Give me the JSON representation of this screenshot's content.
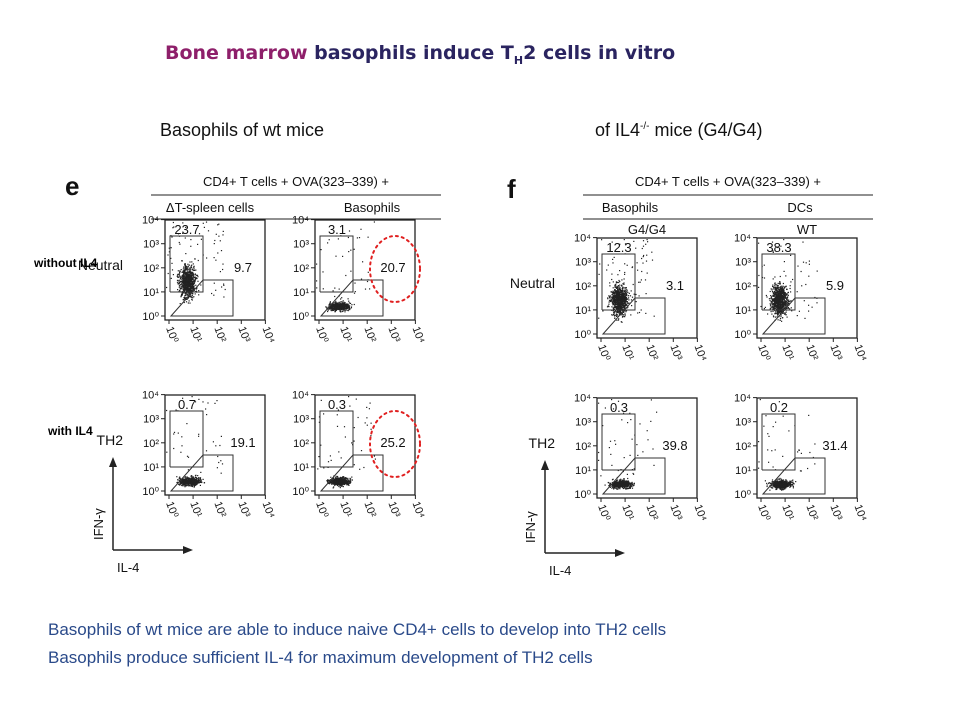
{
  "slide": {
    "title_highlight": "Bone marrow",
    "title_rest": " basophils induce T",
    "title_sub": "H",
    "title_end": "2 cells in vitro",
    "left_heading": "Basophils of wt mice",
    "right_heading_a": "of IL4",
    "right_heading_sup": "-/-",
    "right_heading_b": " mice (G4/G4)",
    "row_label_top": "without IL4",
    "row_label_bottom": "with IL4",
    "conclusion_1": "Basophils of wt mice are able to induce naive CD4+ cells to develop into TH2 cells",
    "conclusion_2": "Basophils produce sufficient IL-4 for maximum development of TH2 cells"
  },
  "panel_e": {
    "letter": "e",
    "header_main": "CD4+ T cells + OVA(323–339) +",
    "col_labels": [
      "ΔT-spleen cells",
      "Basophils"
    ],
    "row_labels": [
      "Neutral",
      "TH2"
    ],
    "plots": [
      {
        "upper": "23.7",
        "lower": "9.7"
      },
      {
        "upper": "3.1",
        "lower": "20.7"
      },
      {
        "upper": "0.7",
        "lower": "19.1"
      },
      {
        "upper": "0.3",
        "lower": "25.2"
      }
    ],
    "y_axis": "IFN-γ",
    "x_axis": "IL-4"
  },
  "panel_f": {
    "letter": "f",
    "header_main": "CD4+ T cells + OVA(323–339) +",
    "col_labels": [
      "Basophils",
      "DCs"
    ],
    "col_sublabels": [
      "G4/G4",
      "WT"
    ],
    "row_labels": [
      "Neutral",
      "TH2"
    ],
    "plots": [
      {
        "upper": "12.3",
        "lower": "3.1"
      },
      {
        "upper": "38.3",
        "lower": "5.9"
      },
      {
        "upper": "0.3",
        "lower": "39.8"
      },
      {
        "upper": "0.2",
        "lower": "31.4"
      }
    ],
    "y_axis": "IFN-γ",
    "x_axis": "IL-4"
  },
  "ticks": {
    "y": [
      "10⁴",
      "10³",
      "10²",
      "10¹",
      "10⁰"
    ],
    "x": [
      "10⁰",
      "10¹",
      "10²",
      "10³",
      "10⁴"
    ]
  },
  "colors": {
    "title_highlight": "#8e1f6a",
    "title_text": "#2a2460",
    "conclusion": "#2a4a8a",
    "highlight_circle": "#e02020"
  }
}
